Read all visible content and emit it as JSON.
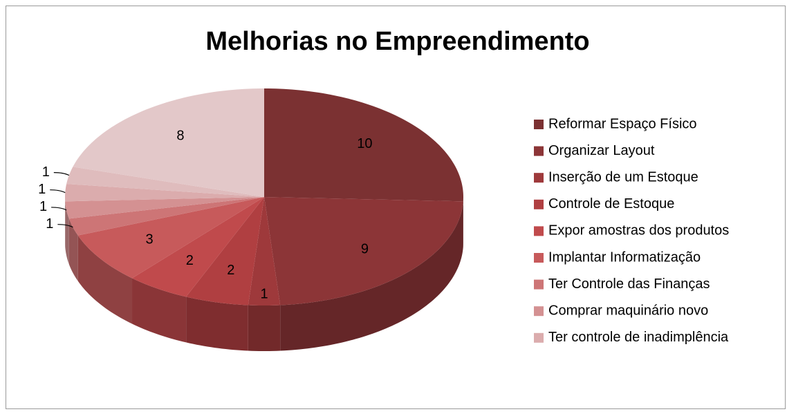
{
  "chart_data": {
    "type": "pie3d",
    "title": "Melhorias no Empreendimento",
    "categories": [
      "Reformar Espaço Físico",
      "Organizar Layout",
      "Inserção de um Estoque",
      "Controle de Estoque",
      "Expor amostras dos produtos",
      "Implantar Informatização",
      "Ter Controle das Finanças",
      "Comprar maquinário novo",
      "Ter controle de inadimplência",
      null,
      null
    ],
    "values": [
      10,
      9,
      1,
      2,
      2,
      3,
      1,
      1,
      1,
      1,
      8
    ],
    "colors": [
      "#7b3132",
      "#8c3537",
      "#9e393b",
      "#b03f41",
      "#c04a4c",
      "#c75a5b",
      "#cd7576",
      "#d49192",
      "#dbacad",
      "#dfbcbd",
      "#e3c8c9"
    ],
    "legend": "right"
  }
}
